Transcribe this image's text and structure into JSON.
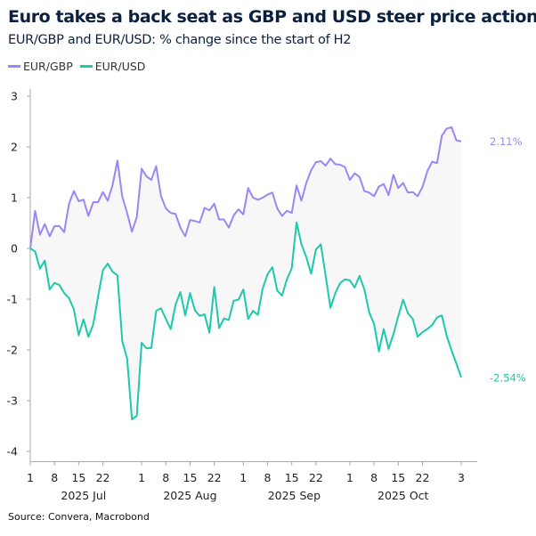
{
  "chart_data": {
    "type": "line",
    "title": "Euro takes a back seat as GBP and USD steer price action",
    "subtitle": "EUR/GBP and EUR/USD: % change since the start of H2",
    "source": "Source: Convera, Macrobond",
    "ylim": [
      -4,
      3
    ],
    "yticks": [
      "3",
      "2",
      "1",
      "0",
      "-1",
      "-2",
      "-3",
      "-4"
    ],
    "ytick_values": [
      3,
      2,
      1,
      0,
      -1,
      -2,
      -3,
      -4
    ],
    "grid": false,
    "legend": "top-left",
    "shaded_between_series": true,
    "x": [
      "2025-07-01",
      "2025-07-02",
      "2025-07-03",
      "2025-07-04",
      "2025-07-07",
      "2025-07-08",
      "2025-07-09",
      "2025-07-10",
      "2025-07-11",
      "2025-07-14",
      "2025-07-15",
      "2025-07-16",
      "2025-07-17",
      "2025-07-18",
      "2025-07-21",
      "2025-07-22",
      "2025-07-23",
      "2025-07-24",
      "2025-07-25",
      "2025-07-28",
      "2025-07-29",
      "2025-07-30",
      "2025-07-31",
      "2025-08-01",
      "2025-08-04",
      "2025-08-05",
      "2025-08-06",
      "2025-08-07",
      "2025-08-08",
      "2025-08-11",
      "2025-08-12",
      "2025-08-13",
      "2025-08-14",
      "2025-08-15",
      "2025-08-18",
      "2025-08-19",
      "2025-08-20",
      "2025-08-21",
      "2025-08-22",
      "2025-08-25",
      "2025-08-26",
      "2025-08-27",
      "2025-08-28",
      "2025-08-29",
      "2025-09-01",
      "2025-09-02",
      "2025-09-03",
      "2025-09-04",
      "2025-09-05",
      "2025-09-08",
      "2025-09-09",
      "2025-09-10",
      "2025-09-11",
      "2025-09-12",
      "2025-09-15",
      "2025-09-16",
      "2025-09-17",
      "2025-09-18",
      "2025-09-19",
      "2025-09-22",
      "2025-09-23",
      "2025-09-24",
      "2025-09-25",
      "2025-09-26",
      "2025-09-29",
      "2025-09-30",
      "2025-10-01",
      "2025-10-02",
      "2025-10-03",
      "2025-10-06",
      "2025-10-07",
      "2025-10-08",
      "2025-10-09",
      "2025-10-10",
      "2025-10-13",
      "2025-10-14",
      "2025-10-15",
      "2025-10-16",
      "2025-10-17",
      "2025-10-20",
      "2025-10-21",
      "2025-10-22",
      "2025-10-23",
      "2025-10-24",
      "2025-10-27",
      "2025-10-28",
      "2025-10-29",
      "2025-10-30",
      "2025-10-31",
      "2025-11-03"
    ],
    "xticks": [
      {
        "date": "2025-07-01",
        "label": "1"
      },
      {
        "date": "2025-07-08",
        "label": "8"
      },
      {
        "date": "2025-07-15",
        "label": "15"
      },
      {
        "date": "2025-07-22",
        "label": "22"
      },
      {
        "date": "2025-08-01",
        "label": "1"
      },
      {
        "date": "2025-08-08",
        "label": "8"
      },
      {
        "date": "2025-08-15",
        "label": "15"
      },
      {
        "date": "2025-08-22",
        "label": "22"
      },
      {
        "date": "2025-09-01",
        "label": "1"
      },
      {
        "date": "2025-09-08",
        "label": "8"
      },
      {
        "date": "2025-09-15",
        "label": "15"
      },
      {
        "date": "2025-09-22",
        "label": "22"
      },
      {
        "date": "2025-10-01",
        "label": "1"
      },
      {
        "date": "2025-10-08",
        "label": "8"
      },
      {
        "date": "2025-10-15",
        "label": "15"
      },
      {
        "date": "2025-10-22",
        "label": "22"
      },
      {
        "date": "2025-11-03",
        "label": "3"
      }
    ],
    "month_labels": [
      {
        "from": "2025-07-01",
        "to": "2025-07-31",
        "label": "2025 Jul"
      },
      {
        "from": "2025-08-01",
        "to": "2025-08-29",
        "label": "2025 Aug"
      },
      {
        "from": "2025-09-01",
        "to": "2025-09-30",
        "label": "2025 Sep"
      },
      {
        "from": "2025-10-01",
        "to": "2025-10-31",
        "label": "2025 Oct"
      }
    ],
    "series": [
      {
        "name": "EUR/GBP",
        "color": "#9b86f2",
        "end_label": "2.11%",
        "values": [
          0,
          0.74,
          0.27,
          0.48,
          0.24,
          0.44,
          0.44,
          0.32,
          0.88,
          1.13,
          0.93,
          0.96,
          0.64,
          0.91,
          0.91,
          1.11,
          0.94,
          1.25,
          1.73,
          1.02,
          0.7,
          0.33,
          0.62,
          1.57,
          1.42,
          1.35,
          1.62,
          1.03,
          0.79,
          0.7,
          0.68,
          0.41,
          0.24,
          0.56,
          0.54,
          0.51,
          0.8,
          0.75,
          0.88,
          0.57,
          0.57,
          0.41,
          0.65,
          0.77,
          0.67,
          1.19,
          1.0,
          0.96,
          1.0,
          1.06,
          1.1,
          0.79,
          0.64,
          0.74,
          0.7,
          1.24,
          0.94,
          1.29,
          1.54,
          1.7,
          1.72,
          1.63,
          1.77,
          1.66,
          1.65,
          1.6,
          1.35,
          1.48,
          1.41,
          1.13,
          1.1,
          1.03,
          1.22,
          1.27,
          1.05,
          1.45,
          1.19,
          1.29,
          1.1,
          1.11,
          1.03,
          1.21,
          1.52,
          1.71,
          1.68,
          2.22,
          2.36,
          2.39,
          2.13,
          2.11
        ]
      },
      {
        "name": "EUR/USD",
        "color": "#1ec8aa",
        "end_label": "-2.54%",
        "values": [
          0,
          -0.06,
          -0.4,
          -0.24,
          -0.81,
          -0.68,
          -0.72,
          -0.88,
          -0.98,
          -1.2,
          -1.71,
          -1.4,
          -1.74,
          -1.5,
          -0.95,
          -0.43,
          -0.3,
          -0.46,
          -0.53,
          -1.83,
          -2.17,
          -3.37,
          -3.3,
          -1.86,
          -1.97,
          -1.96,
          -1.23,
          -1.18,
          -1.39,
          -1.59,
          -1.11,
          -0.86,
          -1.32,
          -0.88,
          -1.22,
          -1.33,
          -1.3,
          -1.66,
          -0.76,
          -1.57,
          -1.38,
          -1.41,
          -1.03,
          -1.01,
          -0.81,
          -1.39,
          -1.23,
          -1.31,
          -0.79,
          -0.51,
          -0.37,
          -0.83,
          -0.93,
          -0.61,
          -0.39,
          0.51,
          0.08,
          -0.17,
          -0.5,
          -0.02,
          0.08,
          -0.54,
          -1.17,
          -0.88,
          -0.68,
          -0.61,
          -0.63,
          -0.77,
          -0.54,
          -0.81,
          -1.26,
          -1.49,
          -2.03,
          -1.59,
          -1.98,
          -1.69,
          -1.34,
          -1.01,
          -1.28,
          -1.39,
          -1.74,
          -1.65,
          -1.59,
          -1.51,
          -1.36,
          -1.32,
          -1.72,
          -2.01,
          -2.27,
          -2.54
        ]
      }
    ]
  }
}
